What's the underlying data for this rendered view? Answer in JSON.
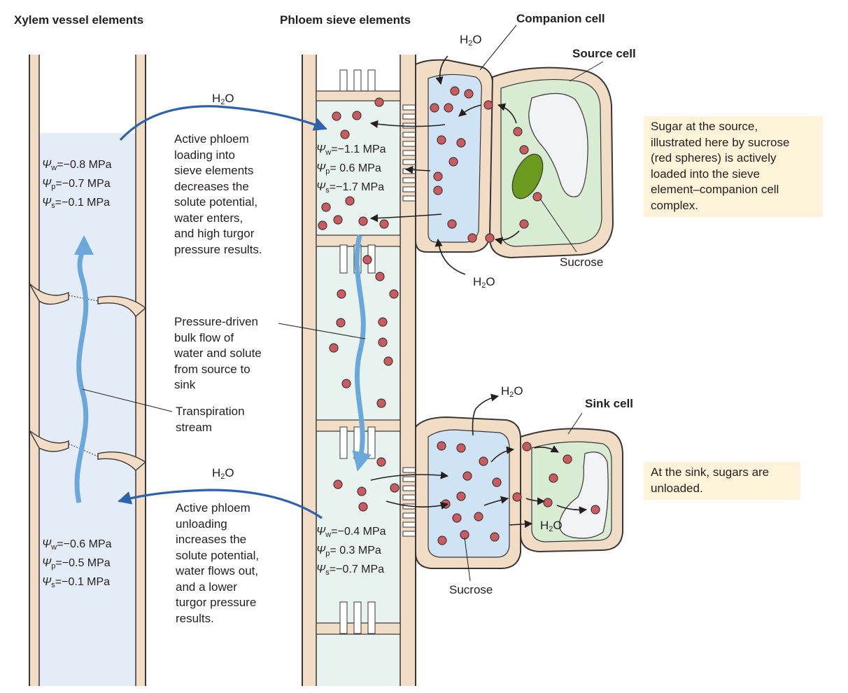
{
  "headers": {
    "xylem": "Xylem vessel elements",
    "phloem": "Phloem sieve elements",
    "companion": "Companion cell",
    "source": "Source cell",
    "sink": "Sink cell"
  },
  "water": {
    "h": "H",
    "two": "2",
    "o": "O"
  },
  "xylem_top": {
    "w_sym": "Ψ",
    "w_sub": "w",
    "w_val": "=−0.8 MPa",
    "p_sym": "Ψ",
    "p_sub": "p",
    "p_val": "=−0.7 MPa",
    "s_sym": "Ψ",
    "s_sub": "s",
    "s_val": "=−0.1 MPa"
  },
  "xylem_bottom": {
    "w_sym": "Ψ",
    "w_sub": "w",
    "w_val": "=−0.6 MPa",
    "p_sym": "Ψ",
    "p_sub": "p",
    "p_val": "=−0.5 MPa",
    "s_sym": "Ψ",
    "s_sub": "s",
    "s_val": "=−0.1 MPa"
  },
  "phloem_top": {
    "w_sym": "Ψ",
    "w_sub": "w",
    "w_val": "=−1.1 MPa",
    "p_sym": "Ψ",
    "p_sub": "p",
    "p_val": "=  0.6 MPa",
    "s_sym": "Ψ",
    "s_sub": "s",
    "s_val": "=−1.7 MPa"
  },
  "phloem_bottom": {
    "w_sym": "Ψ",
    "w_sub": "w",
    "w_val": "=−0.4 MPa",
    "p_sym": "Ψ",
    "p_sub": "p",
    "p_val": "=  0.3 MPa",
    "s_sym": "Ψ",
    "s_sub": "s",
    "s_val": "=−0.7 MPa"
  },
  "text": {
    "loading": [
      "Active phloem",
      "loading into",
      "sieve elements",
      "decreases the",
      "solute potential,",
      "water enters,",
      "and high turgor",
      "pressure results."
    ],
    "bulk_flow": [
      "Pressure-driven",
      "bulk flow of",
      "water and solute",
      "from source to",
      "sink"
    ],
    "transpiration": [
      "Transpiration",
      "stream"
    ],
    "unloading": [
      "Active phloem",
      "unloading",
      "increases the",
      "solute potential,",
      "water flows out,",
      "and a lower",
      "turgor pressure",
      "results."
    ],
    "sucrose_top": "Sucrose",
    "sucrose_bottom": "Sucrose",
    "note_source": [
      "Sugar at the source,",
      "illustrated here by sucrose",
      "(red spheres) is actively",
      "loaded into the sieve",
      "element–companion cell",
      "complex."
    ],
    "note_sink": [
      "At the sink, sugars are",
      "unloaded."
    ]
  },
  "colors": {
    "wall": "#f1ddc6",
    "wall_stroke": "#3b3534",
    "xylem_fill": "#e4ecf7",
    "phloem_fill": "#e8f3ef",
    "companion_fill": "#cfe3f5",
    "source_fill": "#d8ebd3",
    "vacuole": "#f2f3f4",
    "chloroplast": "#6a9a1e",
    "sucrose": "#cc5b60",
    "flow_arrow": "#6aa8db",
    "water_arrow": "#2f62ac",
    "note_bg": "#fdf3d8"
  },
  "icons": [
    "sucrose-molecule-icon",
    "water-arrow-icon",
    "flow-arrow-icon",
    "chloroplast-icon",
    "vacuole-icon"
  ]
}
